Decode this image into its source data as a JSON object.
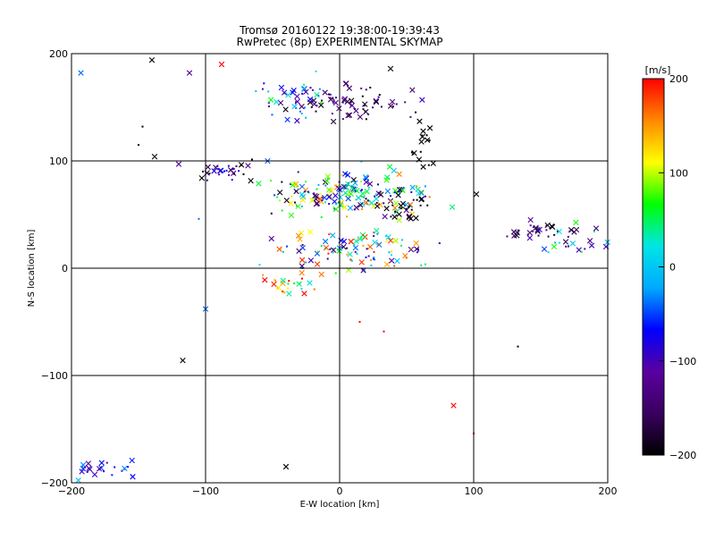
{
  "chart_data": {
    "type": "scatter",
    "title_line1": "Tromsø 20160122 19:38:00-19:39:43",
    "title_line2": "RwPretec (8p) EXPERIMENTAL SKYMAP",
    "xlabel": "E-W location [km]",
    "ylabel": "N-S location [km]",
    "xlim": [
      -200,
      200
    ],
    "ylim": [
      -200,
      200
    ],
    "xticks": [
      "-200",
      "-100",
      "0",
      "100",
      "200"
    ],
    "yticks": [
      "-200",
      "-100",
      "0",
      "100",
      "200"
    ],
    "grid": true,
    "colorbar": {
      "label": "[m/s]",
      "range": [
        -200,
        200
      ],
      "ticks": [
        "200",
        "100",
        "0",
        "-100",
        "-200"
      ],
      "colormap": [
        "#000000",
        "#3a0060",
        "#5a00a0",
        "#0000ff",
        "#00aaff",
        "#00e5e5",
        "#00ff00",
        "#ffff00",
        "#ff8800",
        "#ff0000"
      ]
    },
    "clusters": [
      {
        "cx": 0,
        "cy": 155,
        "sx": 25,
        "sy": 8,
        "n": 70,
        "vmean": -150,
        "vspread": 60
      },
      {
        "cx": -35,
        "cy": 160,
        "sx": 15,
        "sy": 10,
        "n": 35,
        "vmean": -20,
        "vspread": 90
      },
      {
        "cx": 5,
        "cy": 70,
        "sx": 30,
        "sy": 10,
        "n": 190,
        "vmean": -10,
        "vspread": 180
      },
      {
        "cx": 50,
        "cy": 55,
        "sx": 10,
        "sy": 8,
        "n": 25,
        "vmean": -190,
        "vspread": 20
      },
      {
        "cx": 10,
        "cy": 15,
        "sx": 30,
        "sy": 10,
        "n": 110,
        "vmean": 20,
        "vspread": 180
      },
      {
        "cx": -35,
        "cy": -15,
        "sx": 10,
        "sy": 5,
        "n": 25,
        "vmean": 120,
        "vspread": 120
      },
      {
        "cx": -85,
        "cy": 90,
        "sx": 12,
        "sy": 5,
        "n": 30,
        "vmean": -150,
        "vspread": 90
      },
      {
        "cx": 150,
        "cy": 35,
        "sx": 10,
        "sy": 4,
        "n": 30,
        "vmean": -140,
        "vspread": 60
      },
      {
        "cx": 175,
        "cy": 25,
        "sx": 12,
        "sy": 8,
        "n": 25,
        "vmean": -40,
        "vspread": 120
      },
      {
        "cx": 65,
        "cy": 115,
        "sx": 5,
        "sy": 15,
        "n": 18,
        "vmean": -200,
        "vspread": 0
      },
      {
        "cx": -175,
        "cy": -190,
        "sx": 15,
        "sy": 7,
        "n": 25,
        "vmean": -70,
        "vspread": 60
      }
    ],
    "outliers": [
      {
        "x": -193,
        "y": 182,
        "v": -40
      },
      {
        "x": -88,
        "y": 190,
        "v": 200
      },
      {
        "x": 33,
        "y": -59,
        "v": 200
      },
      {
        "x": 15,
        "y": -50,
        "v": 200
      },
      {
        "x": 85,
        "y": -128,
        "v": 200
      },
      {
        "x": 100,
        "y": -154,
        "v": 200
      },
      {
        "x": -117,
        "y": -86,
        "v": -200
      },
      {
        "x": -100,
        "y": -38,
        "v": -40
      },
      {
        "x": -105,
        "y": 46,
        "v": -40
      },
      {
        "x": 133,
        "y": -73,
        "v": -200
      },
      {
        "x": -147,
        "y": 132,
        "v": -200
      },
      {
        "x": -150,
        "y": 115,
        "v": -200
      },
      {
        "x": -138,
        "y": 104,
        "v": -200
      },
      {
        "x": -112,
        "y": 182,
        "v": -120
      },
      {
        "x": 38,
        "y": 186,
        "v": -200
      },
      {
        "x": -140,
        "y": 194,
        "v": -200
      },
      {
        "x": -120,
        "y": 97,
        "v": -120
      },
      {
        "x": -40,
        "y": -185,
        "v": -200
      },
      {
        "x": 102,
        "y": 69,
        "v": -200
      }
    ]
  }
}
